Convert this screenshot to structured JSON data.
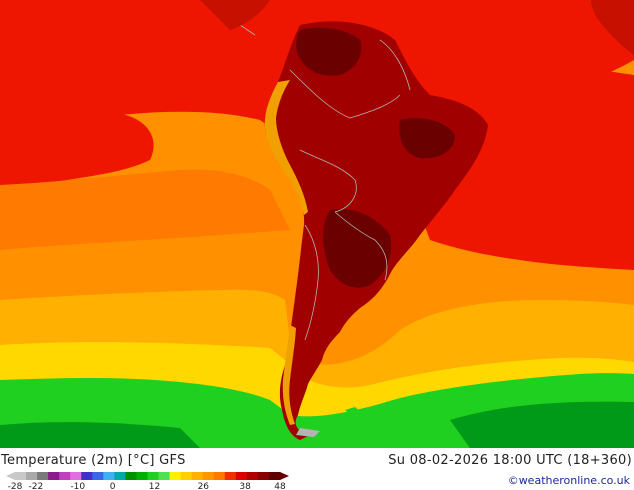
{
  "title": "Temperature (2m) [°C] GFS",
  "valid_time": "Su 08-02-2026 18:00 UTC (18+360)",
  "credit": "©weatheronline.co.uk",
  "legend": {
    "unit": "°C",
    "tick_labels": [
      "-28",
      "-22",
      "-10",
      "0",
      "12",
      "26",
      "38",
      "48"
    ],
    "min": -28,
    "max": 48,
    "colors": [
      "#c8c8c8",
      "#a9a9a9",
      "#7a7a7a",
      "#8b1a8b",
      "#c040c0",
      "#e070e0",
      "#4030c8",
      "#3868e8",
      "#40b0f0",
      "#00aaaa",
      "#009000",
      "#00b000",
      "#20d020",
      "#50e050",
      "#fff000",
      "#ffd000",
      "#ffb000",
      "#ff9600",
      "#ff7800",
      "#f03000",
      "#dd0000",
      "#b00000",
      "#880000",
      "#600000"
    ]
  },
  "map": {
    "region": "South America",
    "field": "2m temperature",
    "palette": {
      "ocean_warm": "#ff9000",
      "ocean_orange": "#ff7a00",
      "ocean_red": "#ee1600",
      "ocean_yellow": "#ffb000",
      "cool_yellow": "#ffd800",
      "cold_green": "#20d020",
      "cold_dark_green": "#009a18",
      "land_dark_red": "#a00000",
      "land_red": "#c81000",
      "land_darkest": "#6a0000",
      "andes_yellow": "#f0a000",
      "border_gray": "#b4b4b4"
    }
  }
}
